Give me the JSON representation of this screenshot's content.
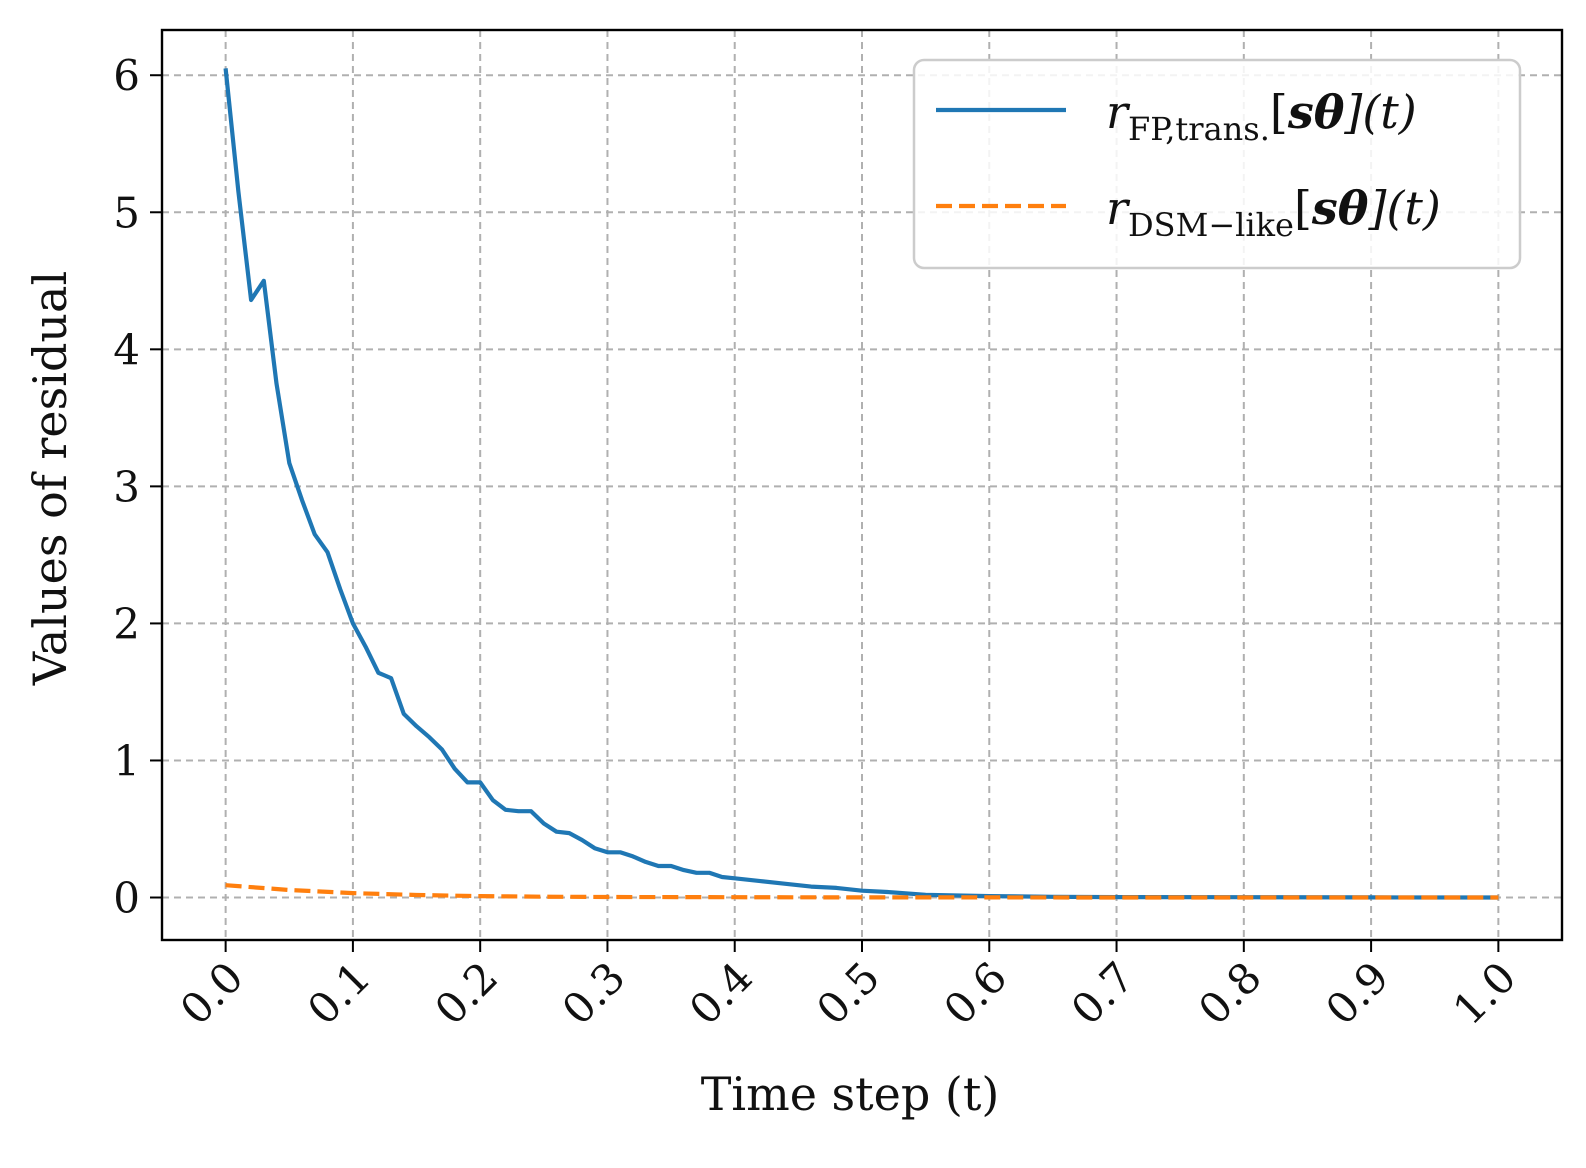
{
  "chart_data": {
    "type": "line",
    "xlabel": "Time step (t)",
    "ylabel": "Values of residual",
    "xlim": [
      -0.05,
      1.05
    ],
    "ylim": [
      -0.31,
      6.33
    ],
    "x_ticks": [
      "0.0",
      "0.1",
      "0.2",
      "0.3",
      "0.4",
      "0.5",
      "0.6",
      "0.7",
      "0.8",
      "0.9",
      "1.0"
    ],
    "y_ticks": [
      "0",
      "1",
      "2",
      "3",
      "4",
      "5",
      "6"
    ],
    "grid": true,
    "legend_position": "top-right",
    "series": [
      {
        "name": "r_FP,trans.[s_θ](t)",
        "label_parts": {
          "base": "r",
          "sub": "FP,trans.",
          "rest_open": "[",
          "bold": "sθ",
          "rest_close": "](t)"
        },
        "color": "#1f77b4",
        "style": "solid",
        "x": [
          0.0,
          0.01,
          0.02,
          0.03,
          0.04,
          0.05,
          0.06,
          0.07,
          0.08,
          0.09,
          0.1,
          0.11,
          0.12,
          0.13,
          0.14,
          0.15,
          0.16,
          0.17,
          0.18,
          0.19,
          0.2,
          0.21,
          0.22,
          0.23,
          0.24,
          0.25,
          0.26,
          0.27,
          0.28,
          0.29,
          0.3,
          0.31,
          0.32,
          0.33,
          0.34,
          0.35,
          0.36,
          0.37,
          0.38,
          0.39,
          0.4,
          0.42,
          0.44,
          0.46,
          0.48,
          0.5,
          0.52,
          0.55,
          0.6,
          0.65,
          0.7,
          0.8,
          0.9,
          1.0
        ],
        "values": [
          6.05,
          5.15,
          4.36,
          4.5,
          3.75,
          3.17,
          2.9,
          2.65,
          2.52,
          2.25,
          2.0,
          1.83,
          1.64,
          1.6,
          1.34,
          1.25,
          1.17,
          1.08,
          0.94,
          0.84,
          0.84,
          0.71,
          0.64,
          0.63,
          0.63,
          0.54,
          0.48,
          0.47,
          0.42,
          0.36,
          0.33,
          0.33,
          0.3,
          0.26,
          0.23,
          0.23,
          0.2,
          0.18,
          0.18,
          0.15,
          0.14,
          0.12,
          0.1,
          0.08,
          0.07,
          0.05,
          0.04,
          0.02,
          0.01,
          0.005,
          0.003,
          0.002,
          0.001,
          0.0
        ]
      },
      {
        "name": "r_DSM−like[s_θ](t)",
        "label_parts": {
          "base": "r",
          "sub": "DSM−like",
          "rest_open": "[",
          "bold": "sθ",
          "rest_close": "](t)"
        },
        "color": "#ff7f0e",
        "style": "dashed",
        "x": [
          0.0,
          0.05,
          0.1,
          0.15,
          0.2,
          0.25,
          0.3,
          0.4,
          0.5,
          0.6,
          0.7,
          0.8,
          0.9,
          1.0
        ],
        "values": [
          0.09,
          0.055,
          0.032,
          0.018,
          0.01,
          0.006,
          0.004,
          0.002,
          0.001,
          0.0005,
          0.0003,
          0.0002,
          0.0001,
          0.0
        ]
      }
    ]
  }
}
